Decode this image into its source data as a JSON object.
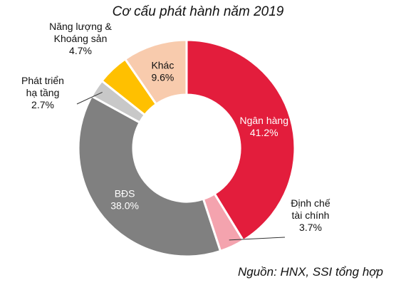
{
  "chart_data": {
    "type": "pie",
    "title": "Cơ cấu phát hành năm 2019",
    "source": "Nguồn: HNX, SSI tổng hợp",
    "categories": [
      "Ngân hàng",
      "Định chế tài chính",
      "BĐS",
      "Phát triển hạ tầng",
      "Năng lượng & Khoáng sản",
      "Khác"
    ],
    "values": [
      41.2,
      3.7,
      38.0,
      2.7,
      4.7,
      9.6
    ],
    "value_labels": [
      "41.2%",
      "3.7%",
      "38.0%",
      "2.7%",
      "4.7%",
      "9.6%"
    ],
    "colors": [
      "#e31d3c",
      "#f4a3ae",
      "#808080",
      "#c8c8c8",
      "#ffc000",
      "#f8cbad"
    ],
    "donut": true
  }
}
